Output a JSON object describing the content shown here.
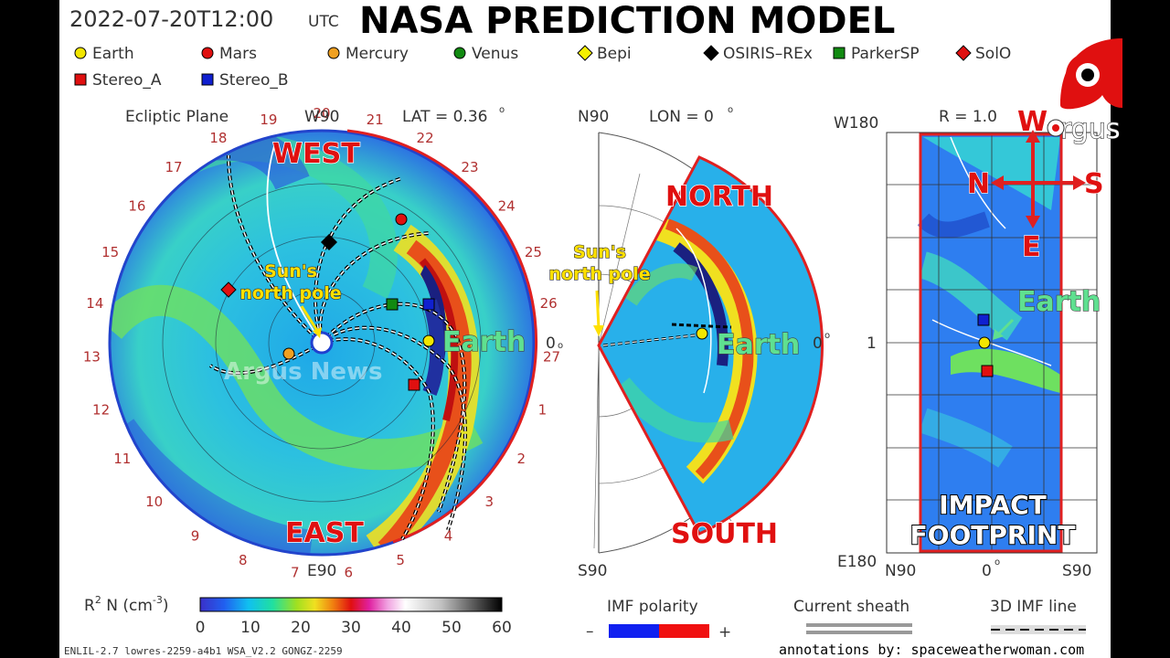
{
  "header": {
    "timestamp": "2022-07-20T12:00",
    "utc": "UTC",
    "title": "NASA PREDICTION MODEL"
  },
  "legend": {
    "items": [
      {
        "label": "Earth",
        "color": "#f2e600",
        "shape": "circle"
      },
      {
        "label": "Mars",
        "color": "#e01010",
        "shape": "circle"
      },
      {
        "label": "Mercury",
        "color": "#f0a020",
        "shape": "circle"
      },
      {
        "label": "Venus",
        "color": "#118a11",
        "shape": "circle"
      },
      {
        "label": "Bepi",
        "color": "#f5f000",
        "shape": "diamond"
      },
      {
        "label": "OSIRIS–REx",
        "color": "#000000",
        "shape": "diamond"
      },
      {
        "label": "ParkerSP",
        "color": "#118a11",
        "shape": "square"
      },
      {
        "label": "SolO",
        "color": "#e01010",
        "shape": "diamond"
      },
      {
        "label": "Stereo_A",
        "color": "#e01010",
        "shape": "square"
      },
      {
        "label": "Stereo_B",
        "color": "#1020d0",
        "shape": "square"
      }
    ]
  },
  "ecliptic": {
    "plane_label": "Ecliptic Plane",
    "top_label": "W90",
    "lat_label": "LAT = 0.36",
    "deg": "o",
    "bottom_label": "E90",
    "zero_label": "0",
    "west": "WEST",
    "east": "EAST",
    "earth": "Earth",
    "sun_pole": "Sun's\nnorth pole",
    "watermark": "Argus News",
    "ticks": [
      "20",
      "21",
      "22",
      "23",
      "24",
      "25",
      "26",
      "27",
      "1",
      "2",
      "3",
      "4",
      "5",
      "6",
      "7",
      "8",
      "9",
      "10",
      "11",
      "12",
      "13",
      "14",
      "15",
      "16",
      "17",
      "18",
      "19"
    ]
  },
  "meridional": {
    "n_label": "N90",
    "lon_label": "LON = 0",
    "s_label": "S90",
    "zero_label": "0",
    "north": "NORTH",
    "south": "SOUTH",
    "earth": "Earth",
    "sun_pole": "Sun's\nnorth pole"
  },
  "footprint": {
    "w_label": "W180",
    "r_label": "R = 1.0",
    "e_label": "E180",
    "one_label": "1",
    "n90": "N90",
    "zero": "0",
    "s90": "S90",
    "earth": "Earth",
    "impact": "IMPACT",
    "footprint": "FOOTPRINT",
    "compass": {
      "w": "W",
      "n": "N",
      "s": "S",
      "e": "E"
    }
  },
  "logo": {
    "text": "rgus",
    "letter": "a"
  },
  "colorbar": {
    "label": "R",
    "label_sup": "2",
    "label_rest": " N (cm",
    "label_exp": "-3",
    "label_close": ")",
    "ticks": [
      "0",
      "10",
      "20",
      "30",
      "40",
      "50",
      "60"
    ]
  },
  "imf": {
    "label": "IMF polarity",
    "minus": "–",
    "plus": "+"
  },
  "sheath": {
    "label": "Current sheath"
  },
  "imfline": {
    "label": "3D IMF line"
  },
  "footer": {
    "model": "ENLIL-2.7 lowres-2259-a4b1 WSA_V2.2 GONGZ-2259",
    "credit": "annotations by: spaceweatherwoman.com"
  }
}
